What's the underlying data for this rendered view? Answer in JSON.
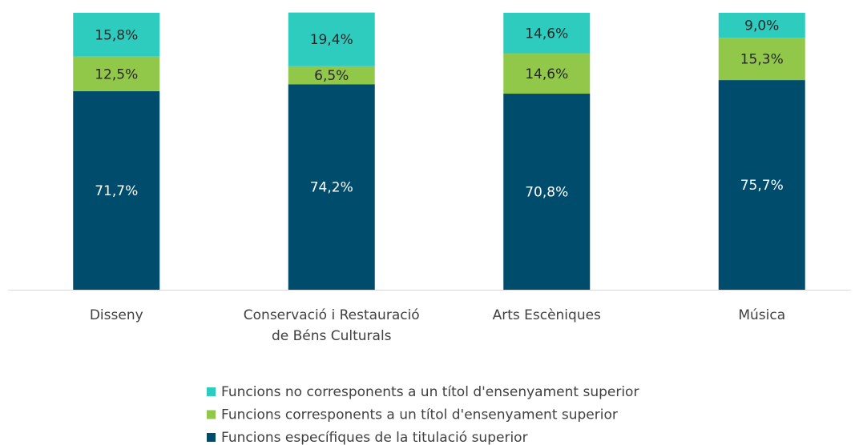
{
  "chart_data": {
    "type": "stacked_bar",
    "categories": [
      "Disseny",
      "Conservació i Restauració de Béns Culturals",
      "Arts Escèniques",
      "Música"
    ],
    "series": [
      {
        "name": "Funcions específiques de la titulació superior",
        "color": "#004c6d",
        "values": [
          71.7,
          74.2,
          70.8,
          75.7
        ],
        "value_labels": [
          "71,7%",
          "74,2%",
          "70,8%",
          "75,7%"
        ]
      },
      {
        "name": "Funcions corresponents a un títol d'ensenyament superior",
        "color": "#92c84a",
        "values": [
          12.5,
          6.5,
          14.6,
          15.3
        ],
        "value_labels": [
          "12,5%",
          "6,5%",
          "14,6%",
          "15,3%"
        ]
      },
      {
        "name": "Funcions no corresponents a un títol d'ensenyament superior",
        "color": "#2ecbbf",
        "values": [
          15.8,
          19.4,
          14.6,
          9.0
        ],
        "value_labels": [
          "15,8%",
          "19,4%",
          "14,6%",
          "9,0%"
        ]
      }
    ],
    "ylim": [
      0,
      100
    ]
  }
}
